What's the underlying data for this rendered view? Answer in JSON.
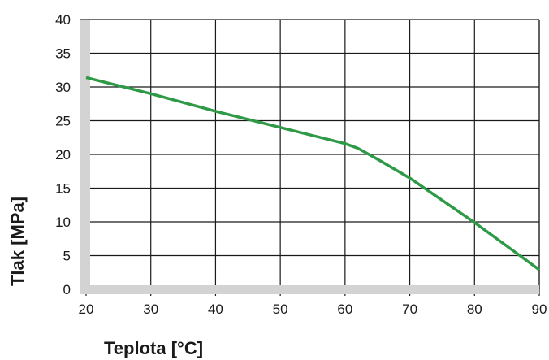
{
  "chart_data": {
    "type": "line",
    "title": "",
    "xlabel": "Teplota [°C]",
    "ylabel": "Tlak [MPa]",
    "xlim": [
      20,
      90
    ],
    "ylim": [
      0,
      40
    ],
    "x_ticks": [
      "20",
      "30",
      "40",
      "50",
      "60",
      "70",
      "80",
      "90"
    ],
    "y_ticks": [
      "0",
      "5",
      "10",
      "15",
      "20",
      "25",
      "30",
      "35",
      "40"
    ],
    "grid": true,
    "series": [
      {
        "color": "#2e9a47",
        "points": [
          [
            20,
            31.4
          ],
          [
            30,
            29.0
          ],
          [
            40,
            26.4
          ],
          [
            50,
            24.0
          ],
          [
            60,
            21.6
          ],
          [
            62,
            20.9
          ],
          [
            65,
            19.3
          ],
          [
            70,
            16.5
          ],
          [
            80,
            9.9
          ],
          [
            90,
            2.9
          ]
        ]
      }
    ]
  }
}
